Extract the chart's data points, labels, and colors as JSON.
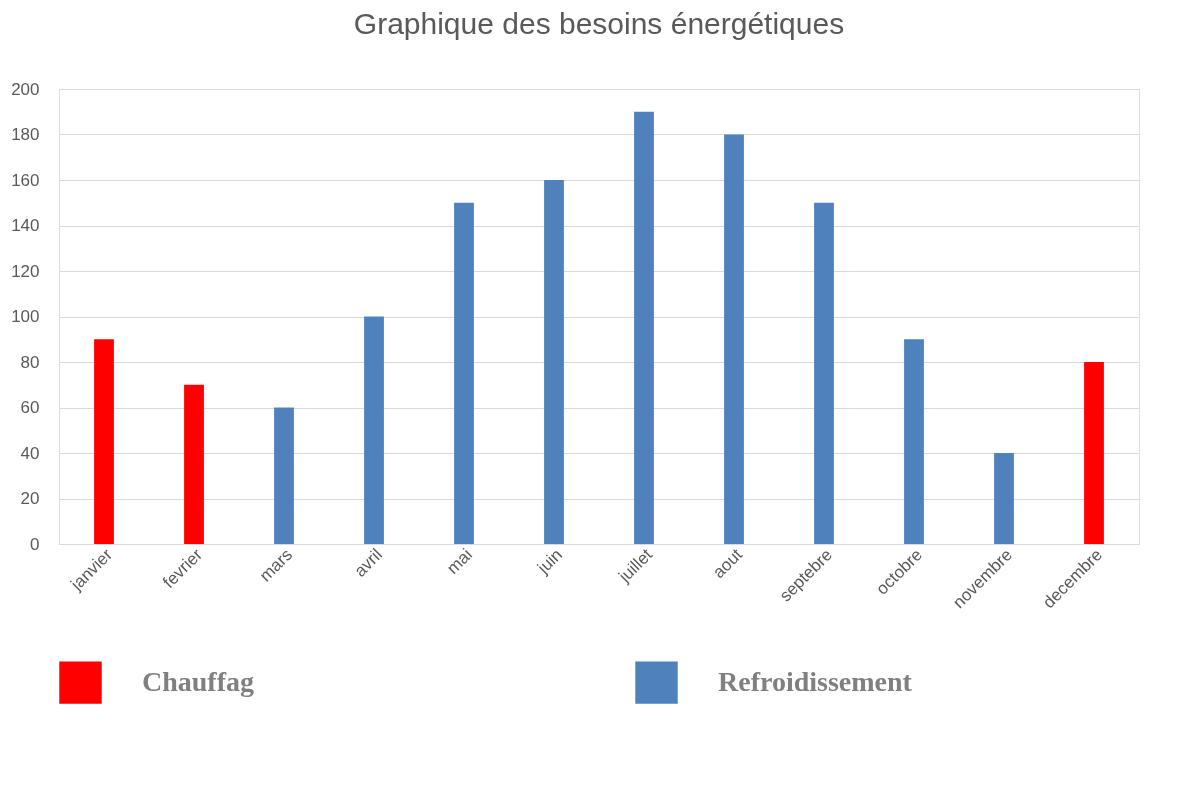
{
  "chart_data": {
    "type": "bar",
    "title": "Graphique des besoins énergétiques",
    "categories": [
      "janvier",
      "fevrier",
      "mars",
      "avril",
      "mai",
      "juin",
      "juillet",
      "aout",
      "septebre",
      "octobre",
      "novembre",
      "decembre"
    ],
    "series": [
      {
        "name": "Chauffag",
        "color": "#ff0000",
        "values": [
          90,
          70,
          null,
          null,
          null,
          null,
          null,
          null,
          null,
          null,
          null,
          80
        ]
      },
      {
        "name": "Refroidissement",
        "color": "#4f81bd",
        "values": [
          null,
          null,
          60,
          100,
          150,
          160,
          190,
          180,
          150,
          90,
          40,
          null
        ]
      }
    ],
    "ylim": [
      0,
      200
    ],
    "yticks": [
      0,
      20,
      40,
      60,
      80,
      100,
      120,
      140,
      160,
      180,
      200
    ],
    "grid": "y",
    "legend": "bottom"
  }
}
